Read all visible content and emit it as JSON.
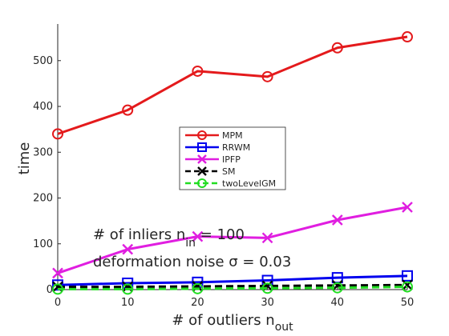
{
  "chart_data": {
    "type": "line",
    "xlabel": "# of outliers n",
    "xlabel_sub": "out",
    "ylabel": "time",
    "xlim": [
      0,
      50
    ],
    "ylim": [
      0,
      580
    ],
    "x": [
      0,
      10,
      20,
      30,
      40,
      50
    ],
    "xticks": [
      0,
      10,
      20,
      30,
      40,
      50
    ],
    "yticks": [
      0,
      100,
      200,
      300,
      400,
      500
    ],
    "grid": false,
    "legend_position": "center",
    "series": [
      {
        "name": "MPM",
        "color": "#e41a1c",
        "marker": "circle",
        "dash": "solid",
        "values": [
          340,
          392,
          477,
          465,
          528,
          552
        ]
      },
      {
        "name": "RRWM",
        "color": "#0000ee",
        "marker": "square",
        "dash": "solid",
        "values": [
          10,
          14,
          16,
          20,
          26,
          30
        ]
      },
      {
        "name": "IPFP",
        "color": "#e01ee0",
        "marker": "x",
        "dash": "solid",
        "values": [
          36,
          88,
          116,
          113,
          152,
          180
        ]
      },
      {
        "name": "SM",
        "color": "#000000",
        "marker": "x",
        "dash": "dashed",
        "values": [
          6,
          6,
          7,
          8,
          9,
          10
        ]
      },
      {
        "name": "twoLevelGM",
        "color": "#22dd22",
        "marker": "circle",
        "dash": "dashed",
        "values": [
          1,
          1,
          2,
          3,
          4,
          6
        ]
      }
    ],
    "annotations": [
      {
        "main": "# of inliers n",
        "sub": "in",
        "rest": " = 100"
      },
      {
        "main": "deformation noise σ = 0.03"
      }
    ]
  }
}
